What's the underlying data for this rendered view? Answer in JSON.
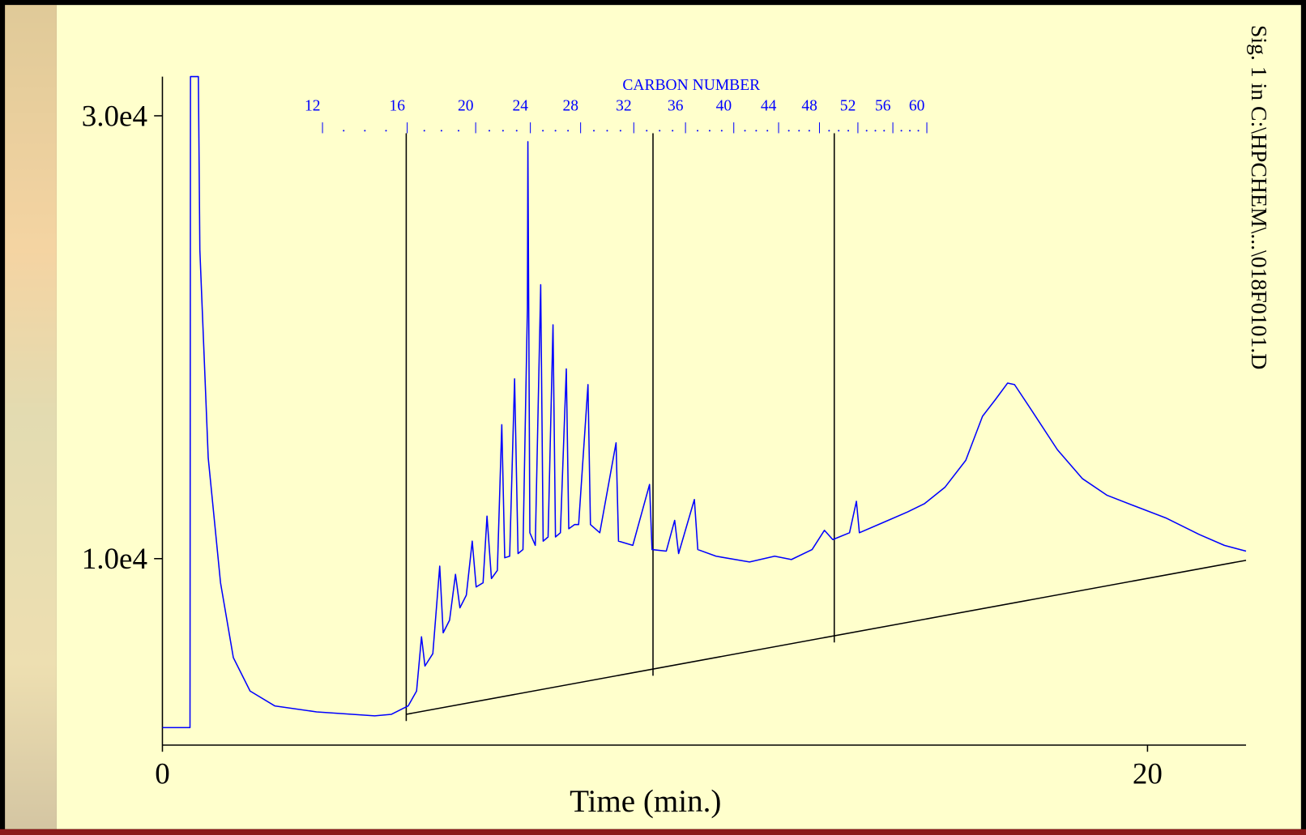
{
  "chart_data": {
    "type": "line",
    "xlabel": "Time (min.)",
    "signal_label": "Sig. 1 in C:\\HPCHEM\\...\\018F0101.D",
    "xlim": [
      0,
      22
    ],
    "ylim": [
      1580,
      31770
    ],
    "xticks": [
      0,
      20
    ],
    "yticks": [
      {
        "value": 10000,
        "label": "1.0e4"
      },
      {
        "value": 30000,
        "label": "3.0e4"
      }
    ],
    "x": [
      0,
      0.56,
      0.57,
      0.73,
      0.76,
      0.93,
      1.18,
      1.44,
      1.78,
      2.28,
      3.13,
      4.31,
      4.65,
      4.99,
      5.16,
      5.26,
      5.33,
      5.49,
      5.63,
      5.7,
      5.83,
      5.95,
      6.04,
      6.17,
      6.29,
      6.37,
      6.51,
      6.59,
      6.68,
      6.8,
      6.89,
      6.95,
      7.05,
      7.15,
      7.22,
      7.32,
      7.41,
      7.42,
      7.46,
      7.57,
      7.68,
      7.73,
      7.83,
      7.93,
      7.98,
      8.08,
      8.2,
      8.25,
      8.37,
      8.45,
      8.64,
      8.69,
      8.88,
      9.21,
      9.26,
      9.55,
      9.89,
      9.94,
      10.23,
      10.4,
      10.48,
      10.8,
      10.87,
      11.24,
      11.92,
      12.43,
      12.77,
      13.19,
      13.44,
      13.61,
      13.95,
      14.09,
      14.15,
      14.62,
      15.13,
      15.47,
      15.89,
      16.31,
      16.65,
      16.91,
      17.16,
      17.3,
      17.67,
      18.17,
      18.68,
      19.18,
      19.7,
      20.37,
      21.05,
      21.56,
      22.0
    ],
    "series": [
      {
        "color": "#0000ff",
        "values": [
          2370,
          2370,
          31770,
          31770,
          23950,
          14550,
          8910,
          5530,
          4020,
          3350,
          3080,
          2900,
          2970,
          3350,
          4020,
          6470,
          5150,
          5710,
          9660,
          6650,
          7220,
          9290,
          7780,
          8350,
          10790,
          8720,
          8910,
          11920,
          9100,
          9470,
          16050,
          10040,
          10110,
          18120,
          10230,
          10410,
          21310,
          28830,
          11170,
          10600,
          22370,
          10790,
          10980,
          20560,
          10980,
          11170,
          18570,
          11350,
          11540,
          11540,
          17860,
          11540,
          11170,
          15230,
          10790,
          10600,
          13350,
          10410,
          10340,
          11730,
          10230,
          12670,
          10410,
          10110,
          9850,
          10110,
          9960,
          10410,
          11280,
          10860,
          11170,
          12590,
          11170,
          11620,
          12110,
          12480,
          13230,
          14440,
          16430,
          17180,
          17930,
          17860,
          16620,
          14920,
          13610,
          12860,
          12410,
          11840,
          11090,
          10600,
          10340
        ]
      }
    ],
    "baseline": {
      "x": [
        4.95,
        22.0
      ],
      "values": [
        2970,
        9925
      ]
    },
    "markers": [
      4.95,
      9.96,
      13.64
    ],
    "carbon_scale": {
      "title": "CARBON NUMBER",
      "color": "#0000ff",
      "ticks": [
        {
          "value": 3.25,
          "label": "12"
        },
        {
          "value": 4.97,
          "label": "16"
        },
        {
          "value": 6.36,
          "label": "20"
        },
        {
          "value": 7.47,
          "label": "24"
        },
        {
          "value": 8.49,
          "label": "28"
        },
        {
          "value": 9.57,
          "label": "32"
        },
        {
          "value": 10.62,
          "label": "36"
        },
        {
          "value": 11.6,
          "label": "40"
        },
        {
          "value": 12.51,
          "label": "44"
        },
        {
          "value": 13.34,
          "label": "48"
        },
        {
          "value": 14.12,
          "label": "52"
        },
        {
          "value": 14.83,
          "label": "56"
        },
        {
          "value": 15.52,
          "label": "60"
        }
      ]
    }
  }
}
